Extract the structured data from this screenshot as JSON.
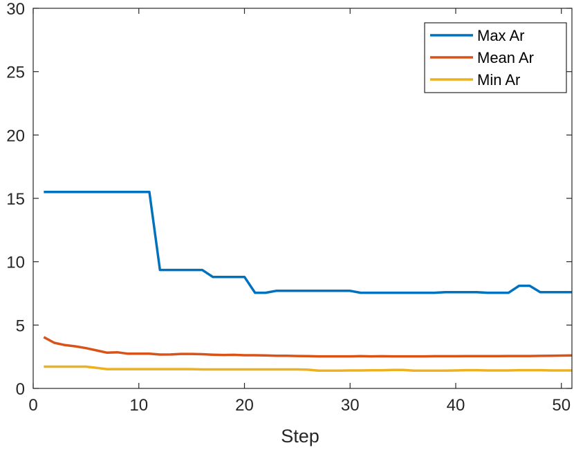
{
  "chart_data": {
    "type": "line",
    "title": "",
    "xlabel": "Step",
    "ylabel": "",
    "xlim": [
      0,
      51
    ],
    "ylim": [
      0,
      30
    ],
    "xticks": [
      0,
      10,
      20,
      30,
      40,
      50
    ],
    "yticks": [
      0,
      5,
      10,
      15,
      20,
      25,
      30
    ],
    "grid": false,
    "legend_position": "top-right",
    "x": [
      1,
      2,
      3,
      4,
      5,
      6,
      7,
      8,
      9,
      10,
      11,
      12,
      13,
      14,
      15,
      16,
      17,
      18,
      19,
      20,
      21,
      22,
      23,
      24,
      25,
      26,
      27,
      28,
      29,
      30,
      31,
      32,
      33,
      34,
      35,
      36,
      37,
      38,
      39,
      40,
      41,
      42,
      43,
      44,
      45,
      46,
      47,
      48,
      49,
      50,
      51
    ],
    "series": [
      {
        "name": "Max Ar",
        "color": "#0072BD",
        "values": [
          15.5,
          15.5,
          15.5,
          15.5,
          15.5,
          15.5,
          15.5,
          15.5,
          15.5,
          15.5,
          15.5,
          9.35,
          9.35,
          9.35,
          9.35,
          9.35,
          8.8,
          8.8,
          8.8,
          8.8,
          7.55,
          7.55,
          7.7,
          7.7,
          7.7,
          7.7,
          7.7,
          7.7,
          7.7,
          7.7,
          7.55,
          7.55,
          7.55,
          7.55,
          7.55,
          7.55,
          7.55,
          7.55,
          7.6,
          7.6,
          7.6,
          7.6,
          7.55,
          7.55,
          7.55,
          8.1,
          8.1,
          7.6,
          7.6,
          7.6,
          7.6
        ]
      },
      {
        "name": "Mean Ar",
        "color": "#D95319",
        "values": [
          4.05,
          3.6,
          3.42,
          3.32,
          3.18,
          3.0,
          2.82,
          2.85,
          2.74,
          2.74,
          2.74,
          2.67,
          2.68,
          2.72,
          2.72,
          2.7,
          2.66,
          2.64,
          2.65,
          2.62,
          2.62,
          2.6,
          2.58,
          2.58,
          2.56,
          2.55,
          2.53,
          2.53,
          2.53,
          2.53,
          2.55,
          2.53,
          2.54,
          2.53,
          2.53,
          2.53,
          2.53,
          2.54,
          2.54,
          2.54,
          2.55,
          2.55,
          2.55,
          2.55,
          2.56,
          2.56,
          2.56,
          2.57,
          2.58,
          2.59,
          2.6
        ]
      },
      {
        "name": "Min Ar",
        "color": "#EDB120",
        "values": [
          1.72,
          1.72,
          1.72,
          1.72,
          1.72,
          1.62,
          1.52,
          1.52,
          1.52,
          1.52,
          1.52,
          1.52,
          1.52,
          1.52,
          1.52,
          1.5,
          1.5,
          1.5,
          1.5,
          1.5,
          1.5,
          1.5,
          1.5,
          1.5,
          1.5,
          1.48,
          1.4,
          1.4,
          1.4,
          1.42,
          1.42,
          1.43,
          1.43,
          1.46,
          1.46,
          1.4,
          1.4,
          1.4,
          1.4,
          1.42,
          1.44,
          1.44,
          1.42,
          1.42,
          1.42,
          1.44,
          1.44,
          1.44,
          1.42,
          1.42,
          1.42
        ]
      }
    ]
  }
}
